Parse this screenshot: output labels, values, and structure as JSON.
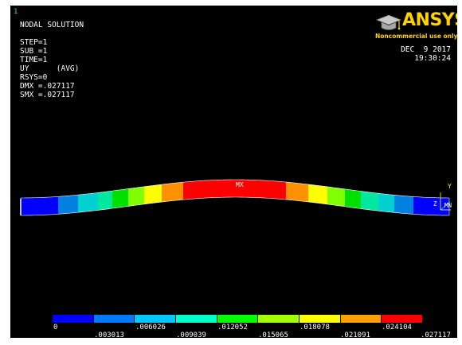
{
  "window_number": "1",
  "info": {
    "lines": [
      "NODAL SOLUTION",
      "",
      "STEP=1",
      "SUB =1",
      "TIME=1",
      "UY      (AVG)",
      "RSYS=0",
      "DMX =.027117",
      "SMX =.027117"
    ]
  },
  "logo": {
    "text": "ANSYS",
    "sub": "Noncommercial use only",
    "icon": "graduation-cap-icon",
    "color": "#ffd200"
  },
  "date": {
    "date": "DEC  9 2017",
    "time": "19:30:24"
  },
  "beam": {
    "max_label": "MX",
    "min_label": "MN",
    "triad_y": "Y",
    "triad_z": "Z",
    "band_colors": [
      "#0000ff",
      "#0080e0",
      "#00d0d0",
      "#00e8a0",
      "#00e000",
      "#80ff00",
      "#ffff00",
      "#ff9000",
      "#ff0000",
      "#ff9000",
      "#ffff00",
      "#80ff00",
      "#00e000",
      "#00e8a0",
      "#00d0d0",
      "#0080e0",
      "#0000ff"
    ]
  },
  "legend": {
    "colors": [
      "#0000ff",
      "#0078ff",
      "#00c8ff",
      "#00ffc8",
      "#00ff00",
      "#a0ff00",
      "#ffff00",
      "#ffa000",
      "#ff0000"
    ],
    "labels_top": [
      "0",
      ".006026",
      ".012052",
      ".018078",
      ".024104"
    ],
    "labels_bottom": [
      ".003013",
      ".009039",
      ".015065",
      ".021091",
      ".027117"
    ]
  }
}
